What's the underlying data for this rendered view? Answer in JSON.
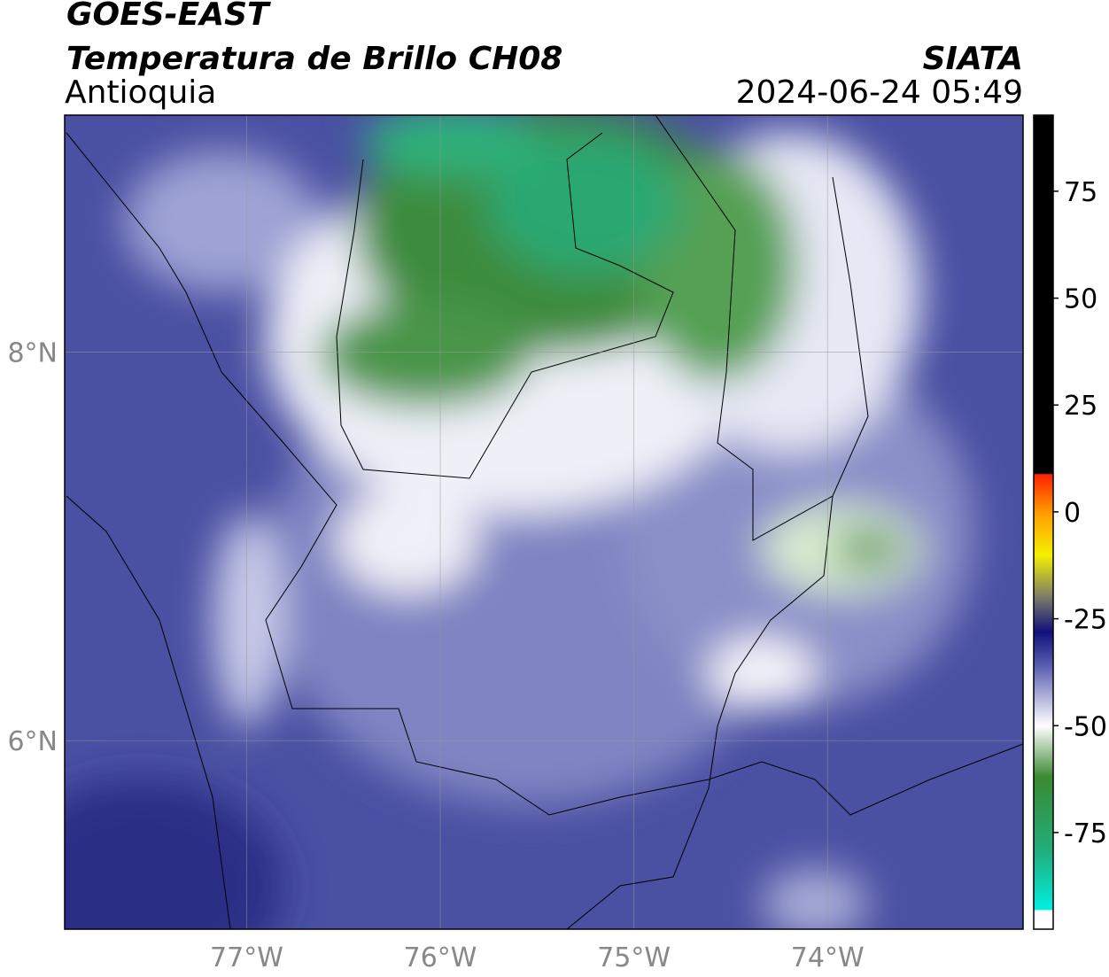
{
  "header": {
    "title": "GOES-EAST",
    "subtitle": "Temperatura de Brillo CH08",
    "region": "Antioquia",
    "source": "SIATA",
    "timestamp": "2024-06-24 05:49"
  },
  "map": {
    "xlim": [
      -77.94,
      -72.99
    ],
    "ylim": [
      5.03,
      9.22
    ],
    "xticks": [
      {
        "value": -77,
        "label": "77°W"
      },
      {
        "value": -76,
        "label": "76°W"
      },
      {
        "value": -75,
        "label": "75°W"
      },
      {
        "value": -74,
        "label": "74°W"
      }
    ],
    "yticks": [
      {
        "value": 6,
        "label": "6°N"
      },
      {
        "value": 8,
        "label": "8°N"
      }
    ],
    "grid": true
  },
  "colorbar": {
    "clim": [
      -97.6,
      92.8
    ],
    "ticks": [
      -75,
      -50,
      -25,
      0,
      25,
      50,
      75
    ],
    "stops": [
      {
        "value": 92.8,
        "color": "#000000"
      },
      {
        "value": 9,
        "color": "#000000"
      },
      {
        "value": 8.8,
        "color": "#ff2000"
      },
      {
        "value": 0,
        "color": "#ff9a00"
      },
      {
        "value": -10,
        "color": "#f5f000"
      },
      {
        "value": -20,
        "color": "#7a7a6a"
      },
      {
        "value": -28,
        "color": "#10107a"
      },
      {
        "value": -36,
        "color": "#5a5fb0"
      },
      {
        "value": -50,
        "color": "#ffffff"
      },
      {
        "value": -62,
        "color": "#3a8a30"
      },
      {
        "value": -80,
        "color": "#20b080"
      },
      {
        "value": -93,
        "color": "#00f0e0"
      },
      {
        "value": -93.2,
        "color": "#ffffff"
      },
      {
        "value": -97.6,
        "color": "#ffffff"
      }
    ]
  }
}
